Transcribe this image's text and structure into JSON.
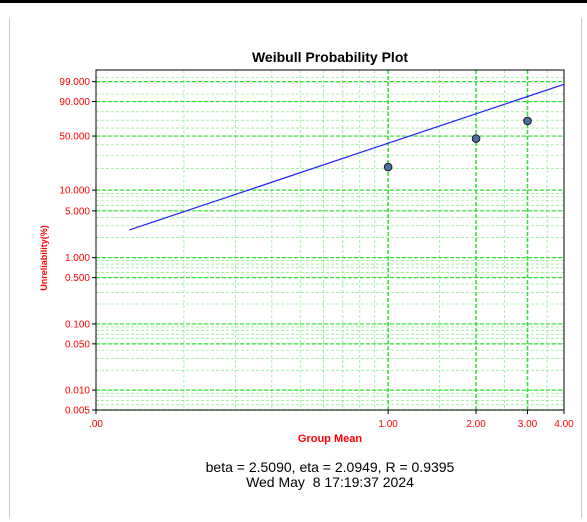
{
  "chart_data": {
    "type": "scatter",
    "title": "Weibull Probability Plot",
    "xlabel": "Group Mean",
    "ylabel": "Unreliability(%)",
    "x_scale": "log",
    "y_scale": "weibull",
    "xlim": [
      0.1,
      4.0
    ],
    "ylim": [
      0.005,
      99.9
    ],
    "x_tick_labels": [
      ".00",
      "1.00",
      "2.00",
      "3.00",
      "4.00"
    ],
    "y_tick_labels": [
      "99.000",
      "90.000",
      "50.000",
      "10.000",
      "5.000",
      "1.000",
      "0.500",
      "0.100",
      "0.050",
      "0.010",
      "0.005"
    ],
    "y_tick_values": [
      99,
      90,
      50,
      10,
      5,
      1,
      0.5,
      0.1,
      0.05,
      0.01,
      0.005
    ],
    "points": [
      {
        "x": 1.0,
        "y": 21.0
      },
      {
        "x": 2.0,
        "y": 47.0
      },
      {
        "x": 3.0,
        "y": 69.0
      }
    ],
    "fit_line": {
      "x": [
        0.13,
        4.0
      ],
      "y": [
        2.6,
        98.5
      ]
    },
    "grid": true,
    "colors": {
      "axis_text": "#ff0000",
      "grid": "#33dd33",
      "fit_line": "#2020ff",
      "marker_fill": "#4a6fa5"
    },
    "annotation": {
      "stats": "beta = 2.5090, eta = 2.0949, R = 0.9395",
      "date": "Wed May  8 17:19:37 2024"
    }
  }
}
